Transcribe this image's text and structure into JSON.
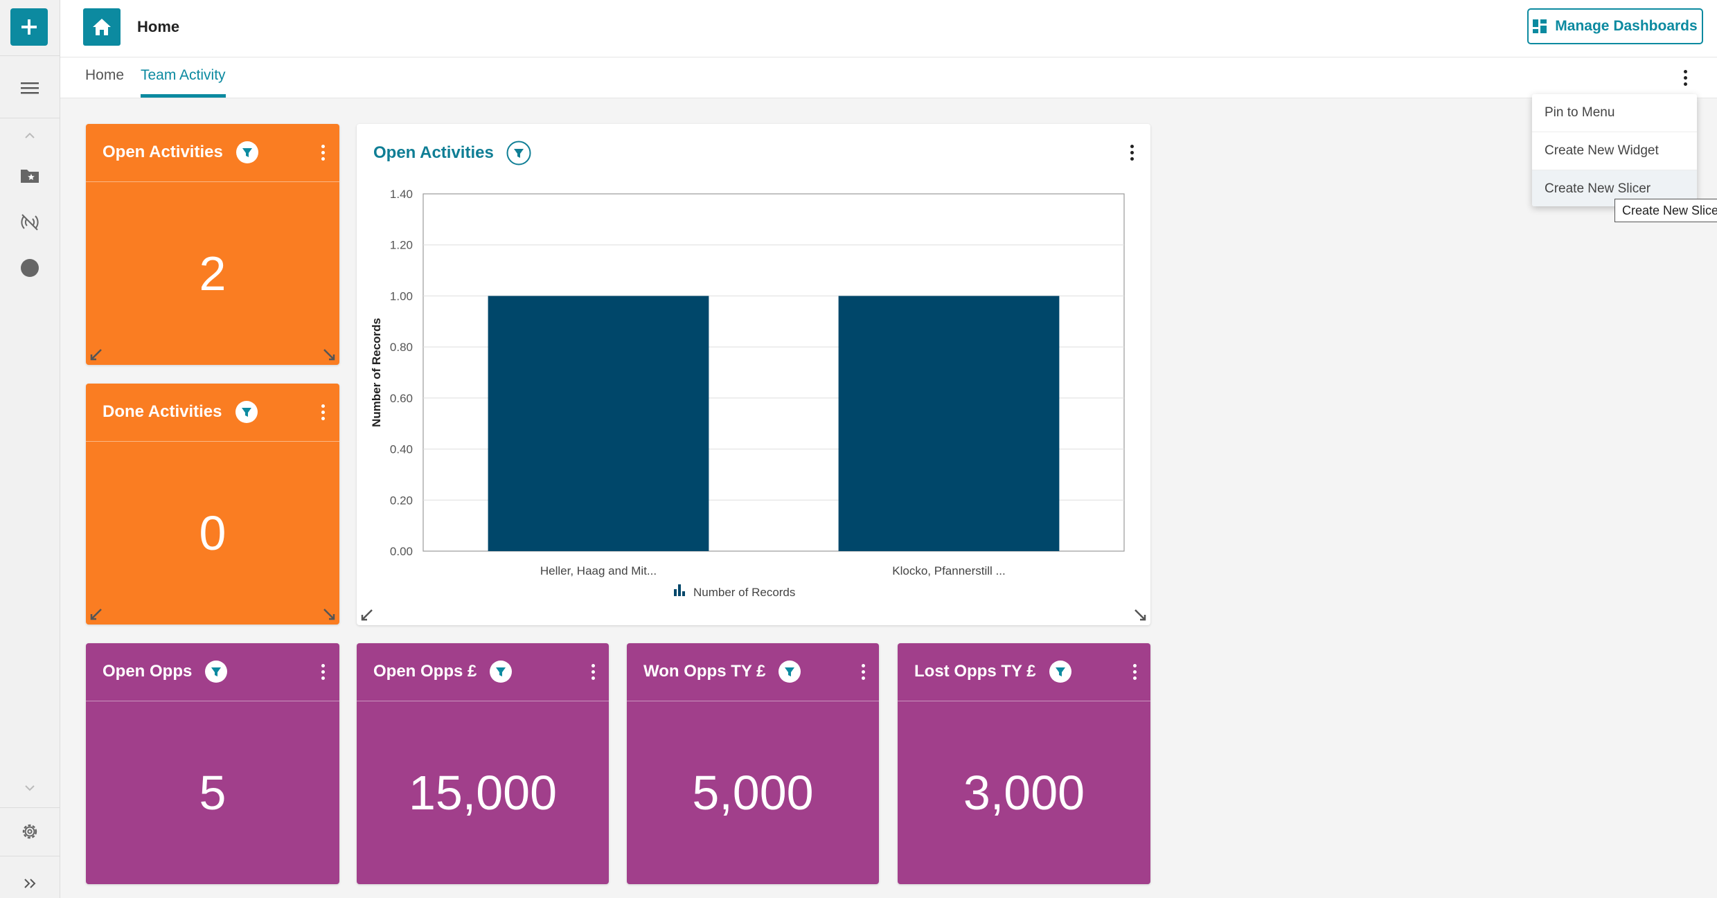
{
  "header": {
    "title": "Home",
    "manage_label": "Manage Dashboards"
  },
  "tabs": [
    {
      "label": "Home",
      "active": false
    },
    {
      "label": "Team Activity",
      "active": true
    }
  ],
  "menu": {
    "items": [
      "Pin to Menu",
      "Create New Widget",
      "Create New Slicer"
    ],
    "tooltip": "Create New Slicer"
  },
  "widgets": {
    "open_activities": {
      "title": "Open Activities",
      "value": "2"
    },
    "done_activities": {
      "title": "Done Activities",
      "value": "0"
    },
    "open_opps": {
      "title": "Open Opps",
      "value": "5"
    },
    "open_opps_value": {
      "title": "Open Opps £",
      "value": "15,000"
    },
    "won_opps": {
      "title": "Won Opps TY £",
      "value": "5,000"
    },
    "lost_opps": {
      "title": "Lost Opps TY £",
      "value": "3,000"
    }
  },
  "chart_widget": {
    "title": "Open Activities"
  },
  "colors": {
    "accent": "#0c8aa0",
    "orange": "#fa7d22",
    "purple": "#a13f8b",
    "bar": "#00476a"
  },
  "chart_data": {
    "type": "bar",
    "categories": [
      "Heller, Haag and Mit...",
      "Klocko, Pfannerstill ..."
    ],
    "series": [
      {
        "name": "Number of Records",
        "values": [
          1,
          1
        ]
      }
    ],
    "ylabel": "Number of Records",
    "ylim": [
      0,
      1.4
    ],
    "yticks": [
      "0.00",
      "0.20",
      "0.40",
      "0.60",
      "0.80",
      "1.00",
      "1.20",
      "1.40"
    ],
    "grid": true,
    "legend": "bottom"
  }
}
